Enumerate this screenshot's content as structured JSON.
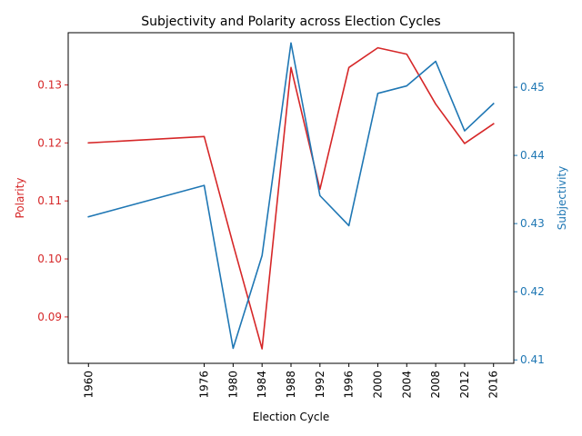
{
  "chart_data": {
    "type": "line",
    "title": "Subjectivity and Polarity across Election Cycles",
    "xlabel": "Election Cycle",
    "ylabel_left": "Polarity",
    "ylabel_right": "Subjectivity",
    "x": [
      1960,
      1976,
      1980,
      1984,
      1988,
      1992,
      1996,
      2000,
      2004,
      2008,
      2012,
      2016
    ],
    "x_ticks": [
      "1960",
      "1976",
      "1980",
      "1984",
      "1988",
      "1992",
      "1996",
      "2000",
      "2004",
      "2008",
      "2012",
      "2016"
    ],
    "xlim": [
      1957.2,
      2018.8
    ],
    "grid": false,
    "legend": "none",
    "series": [
      {
        "axis": "left",
        "color": "#d62728",
        "values": [
          0.12,
          0.1211,
          0.1025,
          0.0845,
          0.133,
          0.112,
          0.133,
          0.1364,
          0.1353,
          0.1267,
          0.1199,
          0.1233
        ]
      },
      {
        "axis": "right",
        "color": "#1f77b4",
        "values": [
          0.431,
          0.4356,
          0.4117,
          0.4253,
          0.4565,
          0.4341,
          0.4297,
          0.4491,
          0.4502,
          0.4538,
          0.4436,
          0.4476
        ]
      }
    ],
    "y_left": {
      "ylim": [
        0.082,
        0.139
      ],
      "ticks": [
        0.09,
        0.1,
        0.11,
        0.12,
        0.13
      ],
      "tick_labels": [
        "0.09",
        "0.10",
        "0.11",
        "0.12",
        "0.13"
      ]
    },
    "y_right": {
      "ylim": [
        0.4095,
        0.458
      ],
      "ticks": [
        0.41,
        0.42,
        0.43,
        0.44,
        0.45
      ],
      "tick_labels": [
        "0.41",
        "0.42",
        "0.43",
        "0.44",
        "0.45"
      ]
    }
  }
}
